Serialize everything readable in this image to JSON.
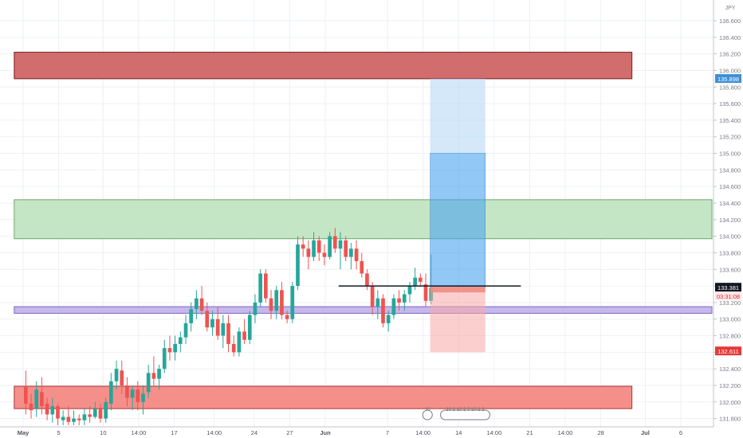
{
  "chart_data": {
    "type": "candlestick",
    "symbol_unit": "JPY",
    "y_range": [
      131.7,
      136.85
    ],
    "y_ticks": [
      "131.800",
      "132.000",
      "132.200",
      "132.400",
      "132.600",
      "132.800",
      "133.000",
      "133.200",
      "133.400",
      "133.600",
      "133.800",
      "134.000",
      "134.200",
      "134.400",
      "134.600",
      "134.800",
      "135.000",
      "135.200",
      "135.400",
      "135.600",
      "135.800",
      "136.000",
      "136.200",
      "136.400",
      "136.600"
    ],
    "x_ticks": [
      {
        "label": "May",
        "t": 0
      },
      {
        "label": "5",
        "t": 4
      },
      {
        "label": "10",
        "t": 9
      },
      {
        "label": "14:00",
        "t": 13
      },
      {
        "label": "17",
        "t": 17
      },
      {
        "label": "14:00",
        "t": 21.5
      },
      {
        "label": "24",
        "t": 26
      },
      {
        "label": "27",
        "t": 30
      },
      {
        "label": "Jun",
        "t": 34
      },
      {
        "label": "7",
        "t": 41
      },
      {
        "label": "14:00",
        "t": 45
      },
      {
        "label": "14",
        "t": 49
      },
      {
        "label": "14:00",
        "t": 53
      },
      {
        "label": "21",
        "t": 57
      },
      {
        "label": "14:00",
        "t": 61
      },
      {
        "label": "28",
        "t": 65
      },
      {
        "label": "Jul",
        "t": 70
      },
      {
        "label": "6",
        "t": 74
      }
    ],
    "x_range": [
      0,
      77.5
    ],
    "price_labels": {
      "top_level": "135.898",
      "last_price": "133.381",
      "countdown": "03:31:08",
      "stop_level": "132.611"
    },
    "zones": [
      {
        "name": "supply",
        "y_high": 136.22,
        "y_low": 135.9,
        "t_start": -1,
        "t_end": 68.5,
        "fill": "#d26d6d",
        "stroke": "#7a1f1f"
      },
      {
        "name": "middle-zone",
        "y_high": 134.44,
        "y_low": 133.97,
        "t_start": -1,
        "t_end": 77.5,
        "fill": "#c5e6c5",
        "stroke": "#6aa86a"
      },
      {
        "name": "purple-line",
        "y_high": 133.15,
        "y_low": 133.07,
        "t_start": -1,
        "t_end": 77.5,
        "fill": "#c7b8ec",
        "stroke": "#7b66c4"
      },
      {
        "name": "demand",
        "y_high": 132.19,
        "y_low": 131.92,
        "t_start": -1,
        "t_end": 68.5,
        "fill": "#f58f8a",
        "stroke": "#a33"
      }
    ],
    "position": {
      "entry": 133.38,
      "target_far": 135.9,
      "target_near": 135.0,
      "stop": 132.6,
      "t_start": 45.8,
      "t_end": 52
    },
    "hline": {
      "y": 133.4,
      "t_start": 35.5,
      "t_end": 56
    },
    "candles": [
      {
        "t": 0.3,
        "o": 132.18,
        "h": 132.38,
        "l": 131.85,
        "c": 131.98
      },
      {
        "t": 0.9,
        "o": 131.98,
        "h": 132.1,
        "l": 131.8,
        "c": 131.9
      },
      {
        "t": 1.5,
        "o": 131.92,
        "h": 132.25,
        "l": 131.82,
        "c": 132.15
      },
      {
        "t": 2.1,
        "o": 132.12,
        "h": 132.3,
        "l": 131.85,
        "c": 131.95
      },
      {
        "t": 2.7,
        "o": 131.98,
        "h": 132.05,
        "l": 131.78,
        "c": 131.85
      },
      {
        "t": 3.3,
        "o": 131.85,
        "h": 132.05,
        "l": 131.75,
        "c": 131.95
      },
      {
        "t": 3.9,
        "o": 131.95,
        "h": 131.98,
        "l": 131.72,
        "c": 131.8
      },
      {
        "t": 4.5,
        "o": 131.78,
        "h": 131.9,
        "l": 131.72,
        "c": 131.82
      },
      {
        "t": 5.1,
        "o": 131.82,
        "h": 131.95,
        "l": 131.72,
        "c": 131.76
      },
      {
        "t": 5.7,
        "o": 131.76,
        "h": 131.9,
        "l": 131.72,
        "c": 131.8
      },
      {
        "t": 6.3,
        "o": 131.8,
        "h": 131.85,
        "l": 131.72,
        "c": 131.78
      },
      {
        "t": 6.9,
        "o": 131.78,
        "h": 131.92,
        "l": 131.72,
        "c": 131.85
      },
      {
        "t": 7.5,
        "o": 131.85,
        "h": 131.95,
        "l": 131.75,
        "c": 131.82
      },
      {
        "t": 8.1,
        "o": 131.82,
        "h": 132.0,
        "l": 131.8,
        "c": 131.92
      },
      {
        "t": 8.7,
        "o": 131.92,
        "h": 131.98,
        "l": 131.75,
        "c": 131.8
      },
      {
        "t": 9.3,
        "o": 131.8,
        "h": 132.05,
        "l": 131.75,
        "c": 132.0
      },
      {
        "t": 9.9,
        "o": 131.98,
        "h": 132.35,
        "l": 131.9,
        "c": 132.25
      },
      {
        "t": 10.5,
        "o": 132.25,
        "h": 132.5,
        "l": 132.15,
        "c": 132.4
      },
      {
        "t": 11.1,
        "o": 132.38,
        "h": 132.5,
        "l": 132.1,
        "c": 132.2
      },
      {
        "t": 11.7,
        "o": 132.2,
        "h": 132.3,
        "l": 131.95,
        "c": 132.05
      },
      {
        "t": 12.3,
        "o": 132.05,
        "h": 132.2,
        "l": 131.9,
        "c": 132.15
      },
      {
        "t": 12.9,
        "o": 132.15,
        "h": 132.25,
        "l": 131.9,
        "c": 132.0
      },
      {
        "t": 13.5,
        "o": 132.0,
        "h": 132.2,
        "l": 131.85,
        "c": 132.1
      },
      {
        "t": 14.1,
        "o": 132.12,
        "h": 132.45,
        "l": 132.05,
        "c": 132.35
      },
      {
        "t": 14.7,
        "o": 132.35,
        "h": 132.55,
        "l": 132.2,
        "c": 132.28
      },
      {
        "t": 15.3,
        "o": 132.28,
        "h": 132.45,
        "l": 132.15,
        "c": 132.4
      },
      {
        "t": 15.9,
        "o": 132.4,
        "h": 132.75,
        "l": 132.35,
        "c": 132.65
      },
      {
        "t": 16.5,
        "o": 132.65,
        "h": 132.8,
        "l": 132.5,
        "c": 132.6
      },
      {
        "t": 17.1,
        "o": 132.6,
        "h": 132.8,
        "l": 132.5,
        "c": 132.7
      },
      {
        "t": 17.7,
        "o": 132.7,
        "h": 132.85,
        "l": 132.6,
        "c": 132.78
      },
      {
        "t": 18.3,
        "o": 132.78,
        "h": 133.05,
        "l": 132.7,
        "c": 132.95
      },
      {
        "t": 18.9,
        "o": 132.95,
        "h": 133.2,
        "l": 132.85,
        "c": 133.12
      },
      {
        "t": 19.5,
        "o": 133.12,
        "h": 133.35,
        "l": 133.0,
        "c": 133.25
      },
      {
        "t": 20.1,
        "o": 133.25,
        "h": 133.4,
        "l": 133.05,
        "c": 133.1
      },
      {
        "t": 20.7,
        "o": 133.1,
        "h": 133.2,
        "l": 132.85,
        "c": 132.9
      },
      {
        "t": 21.3,
        "o": 132.9,
        "h": 133.1,
        "l": 132.8,
        "c": 133.0
      },
      {
        "t": 21.9,
        "o": 133.0,
        "h": 133.15,
        "l": 132.75,
        "c": 132.8
      },
      {
        "t": 22.5,
        "o": 132.8,
        "h": 133.05,
        "l": 132.65,
        "c": 132.95
      },
      {
        "t": 23.1,
        "o": 132.95,
        "h": 133.05,
        "l": 132.6,
        "c": 132.7
      },
      {
        "t": 23.7,
        "o": 132.7,
        "h": 132.8,
        "l": 132.55,
        "c": 132.6
      },
      {
        "t": 24.3,
        "o": 132.6,
        "h": 132.9,
        "l": 132.55,
        "c": 132.85
      },
      {
        "t": 24.9,
        "o": 132.85,
        "h": 133.0,
        "l": 132.7,
        "c": 132.75
      },
      {
        "t": 25.5,
        "o": 132.75,
        "h": 133.1,
        "l": 132.7,
        "c": 133.05
      },
      {
        "t": 26.1,
        "o": 133.05,
        "h": 133.3,
        "l": 132.95,
        "c": 133.2
      },
      {
        "t": 26.7,
        "o": 133.2,
        "h": 133.6,
        "l": 133.15,
        "c": 133.55
      },
      {
        "t": 27.3,
        "o": 133.55,
        "h": 133.6,
        "l": 133.2,
        "c": 133.25
      },
      {
        "t": 27.9,
        "o": 133.25,
        "h": 133.35,
        "l": 133.0,
        "c": 133.1
      },
      {
        "t": 28.5,
        "o": 133.1,
        "h": 133.4,
        "l": 133.0,
        "c": 133.35
      },
      {
        "t": 29.1,
        "o": 133.35,
        "h": 133.45,
        "l": 133.0,
        "c": 133.05
      },
      {
        "t": 29.7,
        "o": 133.05,
        "h": 133.1,
        "l": 132.95,
        "c": 133.0
      },
      {
        "t": 30.3,
        "o": 133.0,
        "h": 133.45,
        "l": 132.95,
        "c": 133.4
      },
      {
        "t": 30.9,
        "o": 133.4,
        "h": 134.0,
        "l": 133.35,
        "c": 133.9
      },
      {
        "t": 31.5,
        "o": 133.9,
        "h": 134.0,
        "l": 133.75,
        "c": 133.85
      },
      {
        "t": 32.1,
        "o": 133.85,
        "h": 133.95,
        "l": 133.6,
        "c": 133.75
      },
      {
        "t": 32.7,
        "o": 133.75,
        "h": 134.05,
        "l": 133.7,
        "c": 133.95
      },
      {
        "t": 33.3,
        "o": 133.95,
        "h": 134.0,
        "l": 133.7,
        "c": 133.8
      },
      {
        "t": 33.9,
        "o": 133.8,
        "h": 133.9,
        "l": 133.65,
        "c": 133.75
      },
      {
        "t": 34.5,
        "o": 133.75,
        "h": 134.05,
        "l": 133.72,
        "c": 134.0
      },
      {
        "t": 35.1,
        "o": 134.0,
        "h": 134.1,
        "l": 133.8,
        "c": 133.85
      },
      {
        "t": 35.7,
        "o": 133.85,
        "h": 134.05,
        "l": 133.6,
        "c": 133.95
      },
      {
        "t": 36.3,
        "o": 133.95,
        "h": 134.0,
        "l": 133.7,
        "c": 133.75
      },
      {
        "t": 36.9,
        "o": 133.75,
        "h": 133.92,
        "l": 133.6,
        "c": 133.85
      },
      {
        "t": 37.5,
        "o": 133.85,
        "h": 133.95,
        "l": 133.6,
        "c": 133.7
      },
      {
        "t": 38.1,
        "o": 133.7,
        "h": 133.8,
        "l": 133.5,
        "c": 133.55
      },
      {
        "t": 38.7,
        "o": 133.55,
        "h": 133.6,
        "l": 133.35,
        "c": 133.4
      },
      {
        "t": 39.3,
        "o": 133.4,
        "h": 133.45,
        "l": 133.05,
        "c": 133.15
      },
      {
        "t": 39.9,
        "o": 133.15,
        "h": 133.35,
        "l": 133.0,
        "c": 133.25
      },
      {
        "t": 40.5,
        "o": 133.25,
        "h": 133.3,
        "l": 132.9,
        "c": 132.95
      },
      {
        "t": 41.1,
        "o": 132.95,
        "h": 133.1,
        "l": 132.85,
        "c": 133.05
      },
      {
        "t": 41.7,
        "o": 133.05,
        "h": 133.3,
        "l": 133.0,
        "c": 133.25
      },
      {
        "t": 42.3,
        "o": 133.25,
        "h": 133.35,
        "l": 133.1,
        "c": 133.2
      },
      {
        "t": 42.9,
        "o": 133.2,
        "h": 133.35,
        "l": 133.1,
        "c": 133.3
      },
      {
        "t": 43.5,
        "o": 133.3,
        "h": 133.45,
        "l": 133.2,
        "c": 133.4
      },
      {
        "t": 44.1,
        "o": 133.4,
        "h": 133.62,
        "l": 133.35,
        "c": 133.5
      },
      {
        "t": 44.7,
        "o": 133.5,
        "h": 133.55,
        "l": 133.4,
        "c": 133.45
      },
      {
        "t": 45.3,
        "o": 133.42,
        "h": 133.55,
        "l": 133.15,
        "c": 133.22
      },
      {
        "t": 45.9,
        "o": 133.22,
        "h": 133.78,
        "l": 133.18,
        "c": 133.38
      }
    ],
    "event_badges": [
      "10",
      "20 2 10 2 5 10 2 2"
    ]
  }
}
